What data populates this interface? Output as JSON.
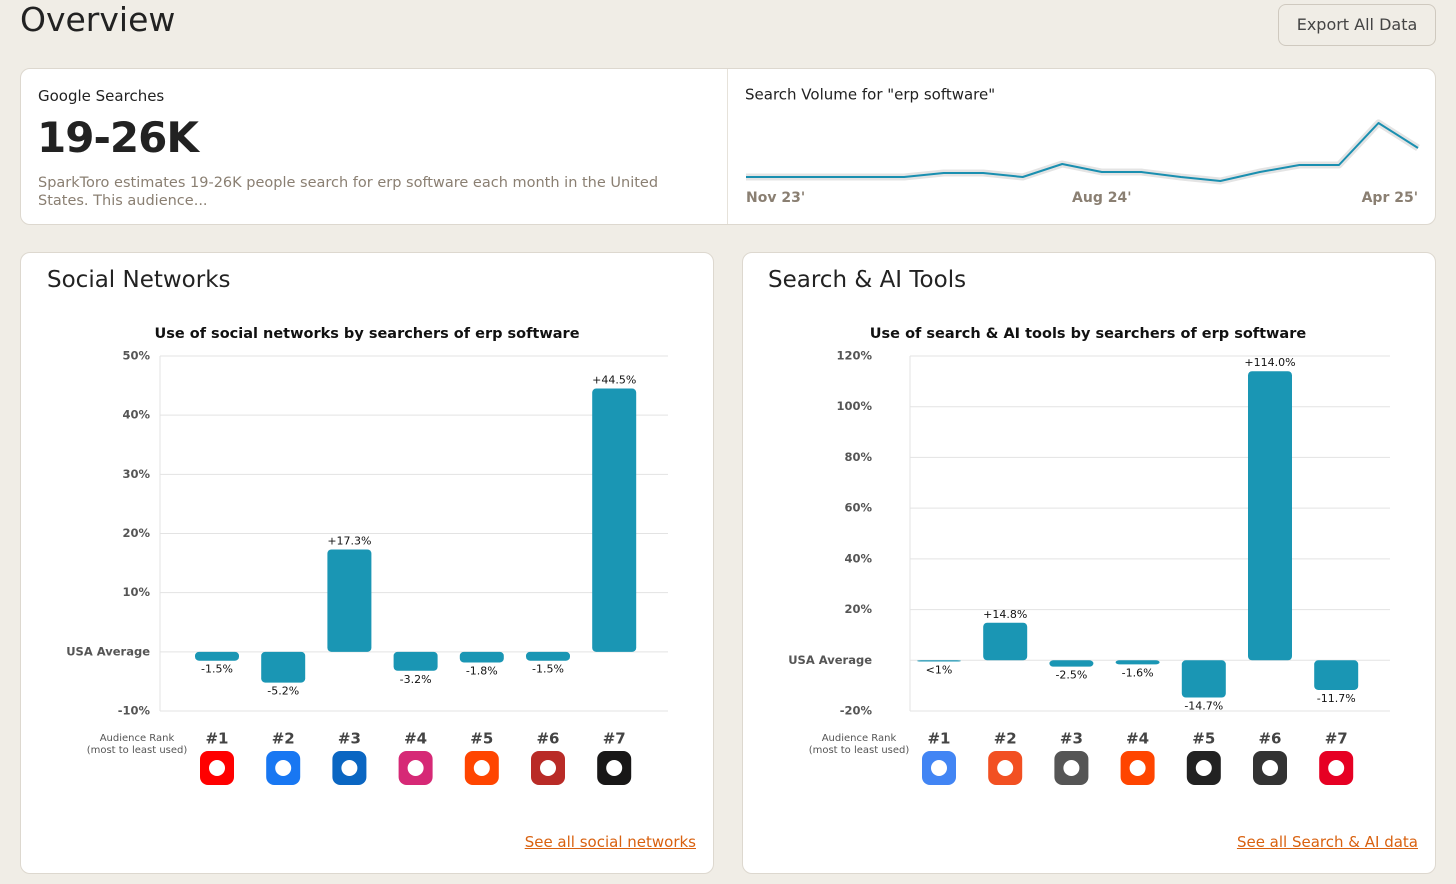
{
  "header": {
    "title": "Overview",
    "button": "Export All Data"
  },
  "searches": {
    "label": "Google Searches",
    "value": "19-26K",
    "description": "SparkToro estimates 19-26K people search for erp software each month in the United States. This audience..."
  },
  "panels": {
    "social": {
      "title": "Social Networks",
      "link": "See all social networks"
    },
    "search": {
      "title": "Search & AI Tools",
      "link": "See all Search & AI data"
    }
  },
  "chart_data": [
    {
      "type": "line",
      "title": "Search Volume for \"erp software\"",
      "color": "#1a8fb0",
      "categories": [
        "Nov 23'",
        null,
        null,
        null,
        null,
        null,
        null,
        null,
        null,
        "Aug 24'",
        null,
        null,
        null,
        null,
        null,
        null,
        null,
        "Apr 25'"
      ],
      "values": [
        23,
        23,
        23,
        23,
        23,
        27,
        27,
        23,
        36,
        28,
        28,
        23,
        19,
        28,
        35,
        35,
        77,
        52
      ]
    },
    {
      "type": "bar",
      "title": "Use of social networks by searchers of erp software",
      "color": "#1a96b4",
      "x_label": [
        "Audience Rank",
        "(most to least used)"
      ],
      "categories": [
        "#1",
        "#2",
        "#3",
        "#4",
        "#5",
        "#6",
        "#7"
      ],
      "values": [
        -1.5,
        -5.2,
        17.3,
        -3.2,
        -1.8,
        -1.5,
        44.5
      ],
      "value_labels": [
        "-1.5%",
        "-5.2%",
        "+17.3%",
        "-3.2%",
        "-1.8%",
        "-1.5%",
        "+44.5%"
      ],
      "ylim": [
        -10,
        50
      ],
      "yticks": [
        {
          "value": -10,
          "label": "-10%"
        },
        {
          "value": 0,
          "label": "USA Average"
        },
        {
          "value": 10,
          "label": "10%"
        },
        {
          "value": 20,
          "label": "20%"
        },
        {
          "value": 30,
          "label": "30%"
        },
        {
          "value": 40,
          "label": "40%"
        },
        {
          "value": 50,
          "label": "50%"
        }
      ],
      "grid": true
    },
    {
      "type": "bar",
      "title": "Use of search & AI tools by searchers of erp software",
      "color": "#1a96b4",
      "x_label": [
        "Audience Rank",
        "(most to least used)"
      ],
      "categories": [
        "#1",
        "#2",
        "#3",
        "#4",
        "#5",
        "#6",
        "#7"
      ],
      "values": [
        -0.5,
        14.8,
        -2.5,
        -1.6,
        -14.7,
        114.0,
        -11.7
      ],
      "value_labels": [
        "<1%",
        "+14.8%",
        "-2.5%",
        "-1.6%",
        "-14.7%",
        "+114.0%",
        "-11.7%"
      ],
      "ylim": [
        -20,
        120
      ],
      "yticks": [
        {
          "value": -20,
          "label": "-20%"
        },
        {
          "value": 0,
          "label": "USA Average"
        },
        {
          "value": 20,
          "label": "20%"
        },
        {
          "value": 40,
          "label": "40%"
        },
        {
          "value": 60,
          "label": "60%"
        },
        {
          "value": 80,
          "label": "80%"
        },
        {
          "value": 100,
          "label": "100%"
        },
        {
          "value": 120,
          "label": "120%"
        }
      ],
      "grid": true
    }
  ]
}
